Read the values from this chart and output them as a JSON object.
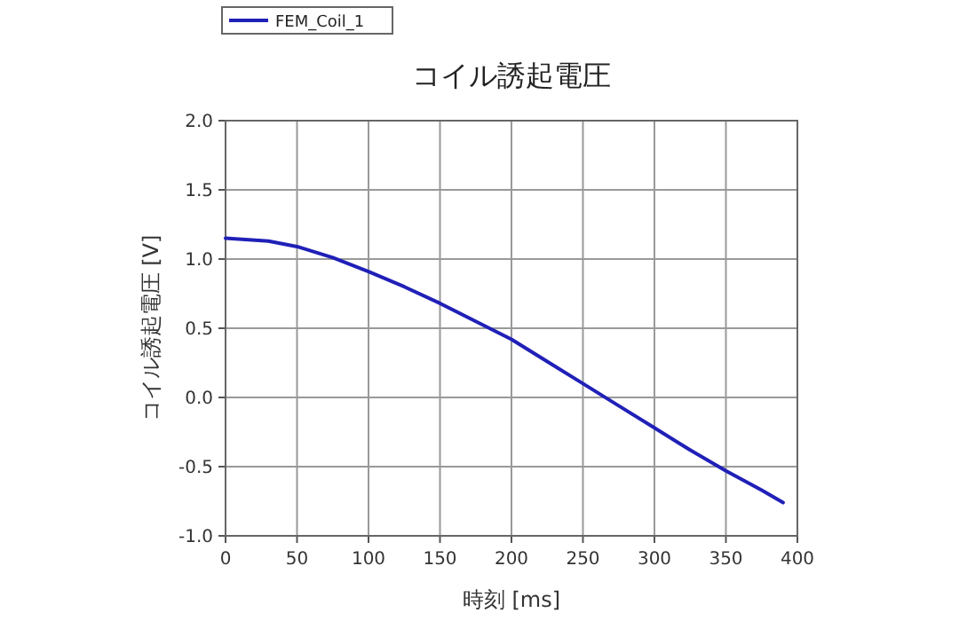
{
  "chart_data": {
    "type": "line",
    "title": "コイル誘起電圧",
    "xlabel": "時刻 [ms]",
    "ylabel": "コイル誘起電圧 [V]",
    "x": [
      0,
      30,
      50,
      75,
      100,
      125,
      150,
      175,
      200,
      225,
      250,
      275,
      300,
      325,
      350,
      375,
      390
    ],
    "series": [
      {
        "name": "FEM_Coil_1",
        "color": "#2020b8",
        "values": [
          1.15,
          1.13,
          1.09,
          1.01,
          0.91,
          0.8,
          0.68,
          0.55,
          0.42,
          0.26,
          0.1,
          -0.06,
          -0.22,
          -0.38,
          -0.53,
          -0.67,
          -0.76
        ]
      }
    ],
    "xlim": [
      0,
      400
    ],
    "xticks": [
      0,
      50,
      100,
      150,
      200,
      250,
      300,
      350,
      400
    ],
    "ylim": [
      -1,
      2
    ],
    "yticks": [
      {
        "value": -1,
        "label": "-1.0"
      },
      {
        "value": -0.5,
        "label": "-0.5"
      },
      {
        "value": 0,
        "label": "0.0"
      },
      {
        "value": 0.5,
        "label": "0.5"
      },
      {
        "value": 1,
        "label": "1.0"
      },
      {
        "value": 1.5,
        "label": "1.5"
      },
      {
        "value": 2,
        "label": "2.0"
      }
    ],
    "grid": true,
    "legend": "top left",
    "marker": "none",
    "line_style": "solid"
  }
}
